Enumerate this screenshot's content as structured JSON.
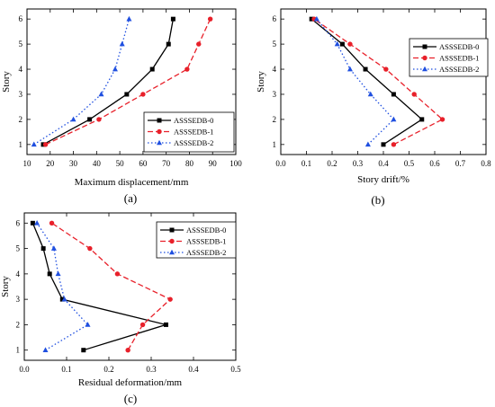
{
  "chart_data": [
    {
      "type": "line",
      "panel": "(a)",
      "xlabel": "Maximum displacement/mm",
      "ylabel": "Story",
      "xlim": [
        10,
        100
      ],
      "ylim": [
        0.6,
        6.4
      ],
      "xticks": [
        10,
        20,
        30,
        40,
        50,
        60,
        70,
        80,
        90,
        100
      ],
      "yticks": [
        1,
        2,
        3,
        4,
        5,
        6
      ],
      "legend_position": "bottom-right",
      "series": [
        {
          "name": "ASSSEDB-0",
          "color": "#000000",
          "dash": "solid",
          "marker": "square",
          "x": [
            17,
            37,
            53,
            64,
            71,
            73
          ],
          "y": [
            1,
            2,
            3,
            4,
            5,
            6
          ]
        },
        {
          "name": "ASSSEDB-1",
          "color": "#e8202a",
          "dash": "dashed",
          "marker": "circle",
          "x": [
            18,
            41,
            60,
            79,
            84,
            89
          ],
          "y": [
            1,
            2,
            3,
            4,
            5,
            6
          ]
        },
        {
          "name": "ASSSEDB-2",
          "color": "#1f4fe0",
          "dash": "dotted",
          "marker": "triangle",
          "x": [
            13,
            30,
            42,
            48,
            51,
            54
          ],
          "y": [
            1,
            2,
            3,
            4,
            5,
            6
          ]
        }
      ]
    },
    {
      "type": "line",
      "panel": "(b)",
      "xlabel": "Story drift/%",
      "ylabel": "Story",
      "xlim": [
        0.0,
        0.8
      ],
      "ylim": [
        0.6,
        6.4
      ],
      "xticks": [
        0.0,
        0.1,
        0.2,
        0.3,
        0.4,
        0.5,
        0.6,
        0.7,
        0.8
      ],
      "yticks": [
        1,
        2,
        3,
        4,
        5,
        6
      ],
      "legend_position": "top-right",
      "series": [
        {
          "name": "ASSSEDB-0",
          "color": "#000000",
          "dash": "solid",
          "marker": "square",
          "x": [
            0.4,
            0.55,
            0.44,
            0.33,
            0.24,
            0.12
          ],
          "y": [
            1,
            2,
            3,
            4,
            5,
            6
          ]
        },
        {
          "name": "ASSSEDB-1",
          "color": "#e8202a",
          "dash": "dashed",
          "marker": "circle",
          "x": [
            0.44,
            0.63,
            0.52,
            0.41,
            0.27,
            0.13
          ],
          "y": [
            1,
            2,
            3,
            4,
            5,
            6
          ]
        },
        {
          "name": "ASSSEDB-2",
          "color": "#1f4fe0",
          "dash": "dotted",
          "marker": "triangle",
          "x": [
            0.34,
            0.44,
            0.35,
            0.27,
            0.22,
            0.14
          ],
          "y": [
            1,
            2,
            3,
            4,
            5,
            6
          ]
        }
      ]
    },
    {
      "type": "line",
      "panel": "(c)",
      "xlabel": "Residual deformation/mm",
      "ylabel": "Story",
      "xlim": [
        0.0,
        0.5
      ],
      "ylim": [
        0.6,
        6.4
      ],
      "xticks": [
        0.0,
        0.1,
        0.2,
        0.3,
        0.4,
        0.5
      ],
      "yticks": [
        1,
        2,
        3,
        4,
        5,
        6
      ],
      "legend_position": "top-right",
      "series": [
        {
          "name": "ASSSEDB-0",
          "color": "#000000",
          "dash": "solid",
          "marker": "square",
          "x": [
            0.14,
            0.335,
            0.09,
            0.06,
            0.045,
            0.02
          ],
          "y": [
            1,
            2,
            3,
            4,
            5,
            6
          ]
        },
        {
          "name": "ASSSEDB-1",
          "color": "#e8202a",
          "dash": "dashed",
          "marker": "circle",
          "x": [
            0.245,
            0.28,
            0.345,
            0.22,
            0.155,
            0.065
          ],
          "y": [
            1,
            2,
            3,
            4,
            5,
            6
          ]
        },
        {
          "name": "ASSSEDB-2",
          "color": "#1f4fe0",
          "dash": "dotted",
          "marker": "triangle",
          "x": [
            0.05,
            0.15,
            0.095,
            0.08,
            0.07,
            0.03
          ],
          "y": [
            1,
            2,
            3,
            4,
            5,
            6
          ]
        }
      ]
    }
  ]
}
